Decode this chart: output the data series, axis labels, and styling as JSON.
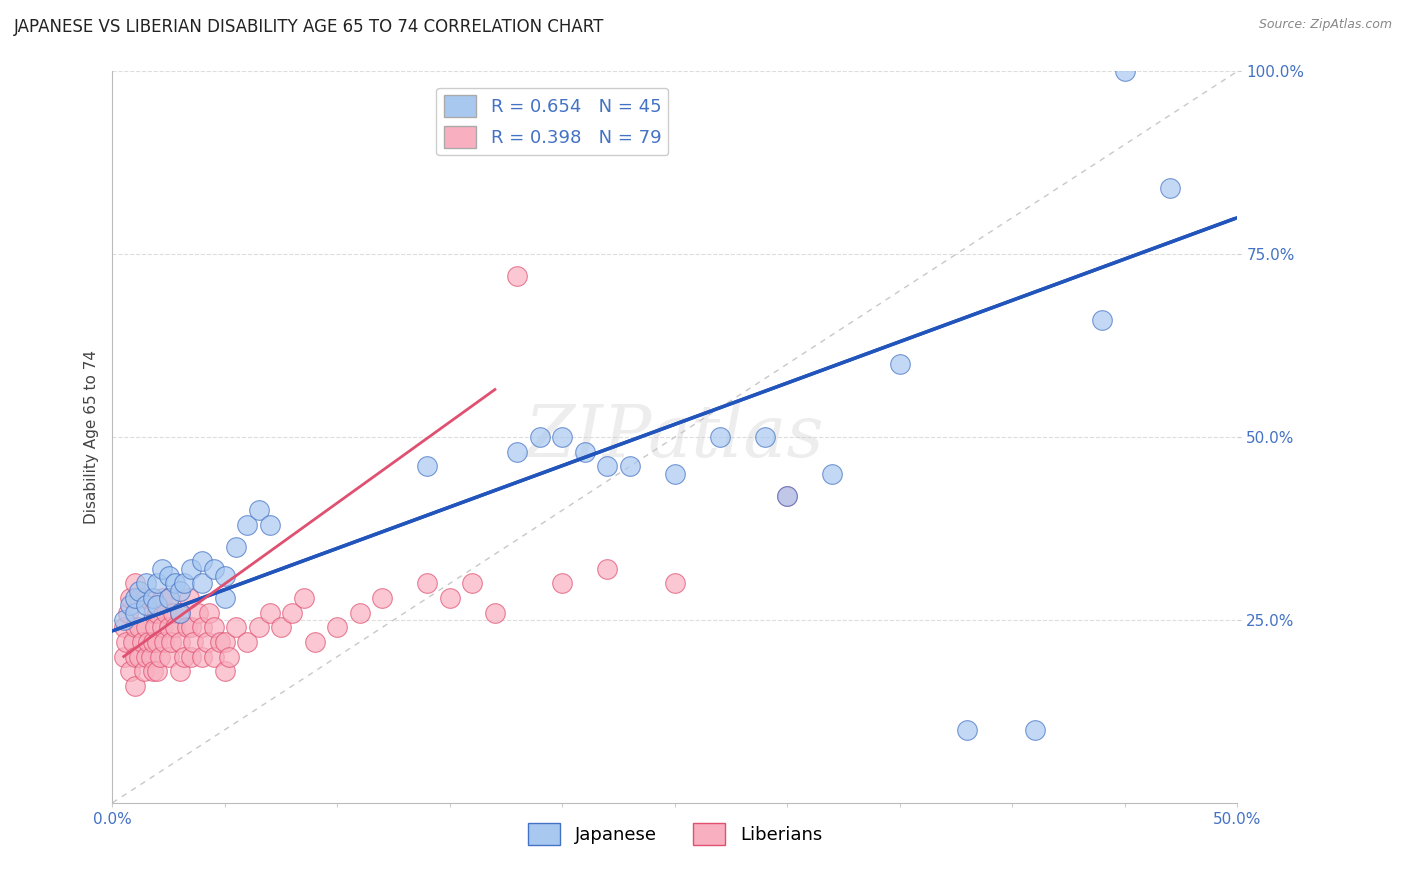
{
  "title": "JAPANESE VS LIBERIAN DISABILITY AGE 65 TO 74 CORRELATION CHART",
  "source_text": "Source: ZipAtlas.com",
  "ylabel": "Disability Age 65 to 74",
  "xlim": [
    0.0,
    0.5
  ],
  "ylim": [
    0.0,
    1.0
  ],
  "xtick_vals": [
    0.0,
    0.05,
    0.1,
    0.15,
    0.2,
    0.25,
    0.3,
    0.35,
    0.4,
    0.45,
    0.5
  ],
  "xtick_labels_sparse": {
    "0": "0.0%",
    "10": "50.0%"
  },
  "ytick_vals": [
    0.25,
    0.5,
    0.75,
    1.0
  ],
  "ytick_labels": [
    "25.0%",
    "50.0%",
    "75.0%",
    "100.0%"
  ],
  "legend_items": [
    {
      "label": "R = 0.654   N = 45",
      "color": "#a8c8f0"
    },
    {
      "label": "R = 0.398   N = 79",
      "color": "#f8b0c0"
    }
  ],
  "watermark_text": "ZIPatlas",
  "japanese_color": "#a8c8f0",
  "liberian_color": "#f8b0c0",
  "japanese_edge": "#4472c4",
  "liberian_edge": "#e05070",
  "trend_japanese_color": "#2255bb",
  "trend_liberian_color": "#e05070",
  "ref_line_color": "#c8c8c8",
  "japanese_x": [
    0.005,
    0.008,
    0.01,
    0.01,
    0.012,
    0.015,
    0.015,
    0.018,
    0.02,
    0.02,
    0.022,
    0.025,
    0.025,
    0.028,
    0.03,
    0.03,
    0.032,
    0.035,
    0.04,
    0.04,
    0.045,
    0.05,
    0.05,
    0.055,
    0.06,
    0.065,
    0.07,
    0.14,
    0.18,
    0.19,
    0.2,
    0.21,
    0.22,
    0.23,
    0.25,
    0.27,
    0.29,
    0.3,
    0.32,
    0.35,
    0.38,
    0.41,
    0.44,
    0.45,
    0.47
  ],
  "japanese_y": [
    0.25,
    0.27,
    0.26,
    0.28,
    0.29,
    0.27,
    0.3,
    0.28,
    0.27,
    0.3,
    0.32,
    0.28,
    0.31,
    0.3,
    0.26,
    0.29,
    0.3,
    0.32,
    0.3,
    0.33,
    0.32,
    0.28,
    0.31,
    0.35,
    0.38,
    0.4,
    0.38,
    0.46,
    0.48,
    0.5,
    0.5,
    0.48,
    0.46,
    0.46,
    0.45,
    0.5,
    0.5,
    0.42,
    0.45,
    0.6,
    0.1,
    0.1,
    0.66,
    1.0,
    0.84
  ],
  "liberian_x": [
    0.005,
    0.005,
    0.006,
    0.007,
    0.008,
    0.008,
    0.009,
    0.01,
    0.01,
    0.01,
    0.01,
    0.012,
    0.012,
    0.012,
    0.013,
    0.014,
    0.015,
    0.015,
    0.015,
    0.016,
    0.017,
    0.018,
    0.018,
    0.018,
    0.019,
    0.02,
    0.02,
    0.02,
    0.021,
    0.022,
    0.022,
    0.023,
    0.024,
    0.025,
    0.025,
    0.025,
    0.026,
    0.027,
    0.028,
    0.03,
    0.03,
    0.03,
    0.032,
    0.033,
    0.034,
    0.035,
    0.035,
    0.036,
    0.038,
    0.04,
    0.04,
    0.042,
    0.043,
    0.045,
    0.045,
    0.048,
    0.05,
    0.05,
    0.052,
    0.055,
    0.06,
    0.065,
    0.07,
    0.075,
    0.08,
    0.085,
    0.09,
    0.1,
    0.11,
    0.12,
    0.14,
    0.15,
    0.16,
    0.17,
    0.18,
    0.2,
    0.22,
    0.25,
    0.3
  ],
  "liberian_y": [
    0.2,
    0.24,
    0.22,
    0.26,
    0.18,
    0.28,
    0.22,
    0.16,
    0.2,
    0.24,
    0.3,
    0.2,
    0.24,
    0.28,
    0.22,
    0.18,
    0.2,
    0.24,
    0.28,
    0.22,
    0.2,
    0.18,
    0.22,
    0.26,
    0.24,
    0.18,
    0.22,
    0.26,
    0.2,
    0.24,
    0.28,
    0.22,
    0.26,
    0.2,
    0.24,
    0.28,
    0.22,
    0.26,
    0.24,
    0.18,
    0.22,
    0.26,
    0.2,
    0.24,
    0.28,
    0.2,
    0.24,
    0.22,
    0.26,
    0.2,
    0.24,
    0.22,
    0.26,
    0.2,
    0.24,
    0.22,
    0.18,
    0.22,
    0.2,
    0.24,
    0.22,
    0.24,
    0.26,
    0.24,
    0.26,
    0.28,
    0.22,
    0.24,
    0.26,
    0.28,
    0.3,
    0.28,
    0.3,
    0.26,
    0.72,
    0.3,
    0.32,
    0.3,
    0.42
  ],
  "trend_jap_x0": 0.0,
  "trend_jap_y0": 0.235,
  "trend_jap_x1": 0.5,
  "trend_jap_y1": 0.8,
  "trend_lib_x0": 0.005,
  "trend_lib_y0": 0.2,
  "trend_lib_x1": 0.17,
  "trend_lib_y1": 0.565,
  "background_color": "#ffffff",
  "grid_color": "#dddddd",
  "title_fontsize": 12,
  "axis_label_fontsize": 11,
  "tick_fontsize": 11,
  "legend_fontsize": 13
}
